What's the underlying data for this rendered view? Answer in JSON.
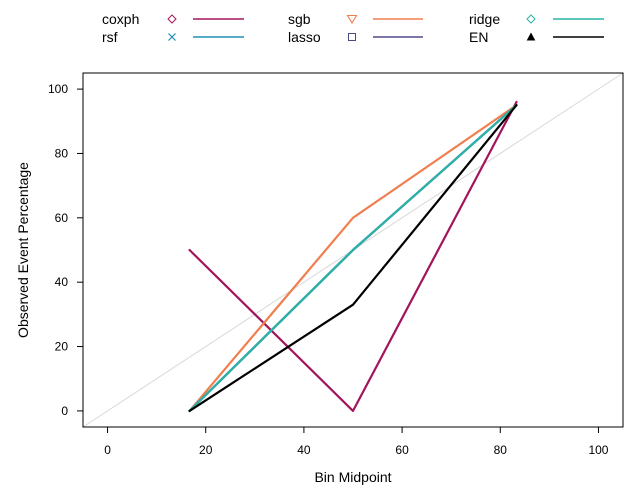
{
  "chart_data": {
    "type": "line",
    "xlabel": "Bin Midpoint",
    "ylabel": "Observed Event Percentage",
    "xlim": [
      -5,
      105
    ],
    "ylim": [
      -5,
      105
    ],
    "xticks": [
      0,
      20,
      40,
      60,
      80,
      100
    ],
    "yticks": [
      0,
      20,
      40,
      60,
      80,
      100
    ],
    "x_tick_labels": [
      "0",
      "20",
      "40",
      "60",
      "80",
      "100"
    ],
    "y_tick_labels": [
      "0",
      "20",
      "40",
      "60",
      "80",
      "100"
    ],
    "grid": false,
    "legend_position": "top",
    "reference_line": {
      "from": [
        -5,
        -5
      ],
      "to": [
        105,
        105
      ],
      "color": "#d9d9d9"
    },
    "x": [
      16.7,
      50,
      83.3
    ],
    "series": [
      {
        "name": "coxph",
        "color": "#a3155a",
        "marker": "diamond-icon",
        "values": [
          50,
          0,
          96
        ]
      },
      {
        "name": "rsf",
        "color": "#1f8fb3",
        "marker": "cross-icon",
        "values": [
          0,
          50,
          95
        ]
      },
      {
        "name": "sgb",
        "color": "#f07f4f",
        "marker": "triangle-down-icon",
        "values": [
          0,
          60,
          95
        ]
      },
      {
        "name": "lasso",
        "color": "#4b4a8a",
        "marker": "square-icon",
        "values": [
          0,
          50,
          95
        ]
      },
      {
        "name": "ridge",
        "color": "#2ab3a8",
        "marker": "diamond-icon",
        "values": [
          0,
          50,
          95
        ]
      },
      {
        "name": "EN",
        "color": "#000000",
        "marker": "triangle-filled-icon",
        "values": [
          0,
          33,
          95
        ]
      }
    ]
  }
}
